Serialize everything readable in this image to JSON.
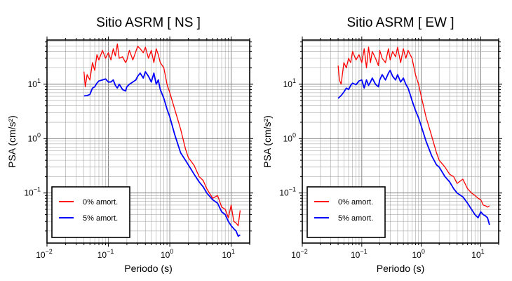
{
  "chart_data": [
    {
      "type": "line",
      "title": "Sitio ASRM [ NS ]",
      "xlabel": "Periodo (s)",
      "ylabel": "PSA (cm/s²)",
      "xscale": "log",
      "yscale": "log",
      "xlim": [
        0.01,
        20
      ],
      "ylim": [
        0.012,
        65
      ],
      "grid": true,
      "legend_position": "bottom-left",
      "x_ticks": [
        {
          "v": 0.01,
          "base": "10",
          "exp": "−2"
        },
        {
          "v": 0.1,
          "base": "10",
          "exp": "−1"
        },
        {
          "v": 1,
          "base": "10",
          "exp": "0"
        },
        {
          "v": 10,
          "base": "10",
          "exp": "1"
        }
      ],
      "y_ticks": [
        {
          "v": 0.1,
          "base": "10",
          "exp": "−1"
        },
        {
          "v": 1,
          "base": "10",
          "exp": "0"
        },
        {
          "v": 10,
          "base": "10",
          "exp": "1"
        }
      ],
      "series": [
        {
          "name": "0% amort.",
          "color": "#ff0000",
          "x": [
            0.04,
            0.042,
            0.045,
            0.05,
            0.055,
            0.06,
            0.065,
            0.07,
            0.08,
            0.09,
            0.1,
            0.11,
            0.12,
            0.13,
            0.14,
            0.15,
            0.17,
            0.19,
            0.2,
            0.22,
            0.25,
            0.28,
            0.3,
            0.33,
            0.37,
            0.4,
            0.45,
            0.5,
            0.55,
            0.6,
            0.65,
            0.7,
            0.8,
            0.9,
            1.0,
            1.2,
            1.5,
            1.8,
            2.0,
            2.5,
            3.0,
            3.5,
            4.0,
            5.0,
            6.0,
            7.0,
            8.0,
            9.0,
            10.0,
            11.0,
            12.0,
            13.0,
            14.0
          ],
          "values": [
            17,
            9,
            15,
            12,
            25,
            18,
            35,
            28,
            42,
            30,
            38,
            28,
            45,
            33,
            55,
            30,
            32,
            25,
            28,
            42,
            28,
            40,
            50,
            45,
            38,
            48,
            30,
            42,
            25,
            45,
            35,
            25,
            20,
            10,
            7,
            3.5,
            1.5,
            0.65,
            0.45,
            0.32,
            0.2,
            0.17,
            0.12,
            0.08,
            0.09,
            0.055,
            0.05,
            0.035,
            0.06,
            0.03,
            0.028,
            0.025,
            0.048
          ]
        },
        {
          "name": "5% amort.",
          "color": "#0000ff",
          "x": [
            0.04,
            0.045,
            0.05,
            0.055,
            0.06,
            0.065,
            0.07,
            0.08,
            0.09,
            0.1,
            0.11,
            0.12,
            0.13,
            0.14,
            0.15,
            0.17,
            0.19,
            0.2,
            0.22,
            0.25,
            0.28,
            0.3,
            0.33,
            0.37,
            0.4,
            0.45,
            0.5,
            0.55,
            0.6,
            0.65,
            0.7,
            0.8,
            0.9,
            1.0,
            1.2,
            1.5,
            1.8,
            2.0,
            2.5,
            3.0,
            3.5,
            4.0,
            5.0,
            6.0,
            7.0,
            8.0,
            9.0,
            10.0,
            11.0,
            12.0,
            13.0,
            14.0
          ],
          "values": [
            6.1,
            6.2,
            6.5,
            8.5,
            9,
            10.5,
            11.5,
            12,
            12.5,
            11,
            11,
            12,
            9.5,
            8.5,
            10,
            8,
            7.5,
            9,
            10,
            11,
            12,
            14,
            16,
            13,
            17,
            14,
            11,
            16,
            10,
            12,
            8,
            5.5,
            3.5,
            2.5,
            1.2,
            0.55,
            0.4,
            0.33,
            0.22,
            0.16,
            0.13,
            0.1,
            0.075,
            0.065,
            0.045,
            0.04,
            0.03,
            0.025,
            0.022,
            0.02,
            0.016,
            0.017
          ]
        }
      ]
    },
    {
      "type": "line",
      "title": "Sitio ASRM [ EW ]",
      "xlabel": "Periodo (s)",
      "ylabel": "PSA (cm/s²)",
      "xscale": "log",
      "yscale": "log",
      "xlim": [
        0.01,
        20
      ],
      "ylim": [
        0.012,
        65
      ],
      "grid": true,
      "legend_position": "bottom-left",
      "x_ticks": [
        {
          "v": 0.01,
          "base": "10",
          "exp": "−2"
        },
        {
          "v": 0.1,
          "base": "10",
          "exp": "−1"
        },
        {
          "v": 1,
          "base": "10",
          "exp": "0"
        },
        {
          "v": 10,
          "base": "10",
          "exp": "1"
        }
      ],
      "y_ticks": [
        {
          "v": 0.1,
          "base": "10",
          "exp": "−1"
        },
        {
          "v": 1,
          "base": "10",
          "exp": "0"
        },
        {
          "v": 10,
          "base": "10",
          "exp": "1"
        }
      ],
      "series": [
        {
          "name": "0% amort.",
          "color": "#ff0000",
          "x": [
            0.04,
            0.042,
            0.045,
            0.05,
            0.055,
            0.06,
            0.065,
            0.07,
            0.08,
            0.09,
            0.1,
            0.11,
            0.12,
            0.13,
            0.14,
            0.15,
            0.17,
            0.19,
            0.2,
            0.22,
            0.25,
            0.28,
            0.3,
            0.33,
            0.37,
            0.4,
            0.45,
            0.5,
            0.55,
            0.6,
            0.65,
            0.7,
            0.8,
            0.9,
            1.0,
            1.2,
            1.5,
            1.8,
            2.0,
            2.5,
            3.0,
            3.5,
            4.0,
            5.0,
            6.0,
            7.0,
            8.0,
            9.0,
            10.0,
            11.0,
            12.0,
            13.0,
            14.0
          ],
          "values": [
            22,
            12,
            10,
            25,
            20,
            30,
            25,
            40,
            28,
            35,
            25,
            45,
            20,
            48,
            25,
            40,
            30,
            22,
            42,
            30,
            25,
            45,
            28,
            40,
            32,
            48,
            25,
            45,
            30,
            42,
            35,
            30,
            15,
            10,
            6,
            2.5,
            1.1,
            0.55,
            0.4,
            0.3,
            0.22,
            0.2,
            0.15,
            0.18,
            0.12,
            0.1,
            0.09,
            0.08,
            0.075,
            0.06,
            0.058,
            0.055,
            0.058
          ]
        },
        {
          "name": "5% amort.",
          "color": "#0000ff",
          "x": [
            0.04,
            0.045,
            0.05,
            0.055,
            0.06,
            0.065,
            0.07,
            0.08,
            0.09,
            0.1,
            0.11,
            0.12,
            0.13,
            0.14,
            0.15,
            0.17,
            0.19,
            0.2,
            0.22,
            0.25,
            0.28,
            0.3,
            0.33,
            0.37,
            0.4,
            0.45,
            0.5,
            0.55,
            0.6,
            0.65,
            0.7,
            0.8,
            0.9,
            1.0,
            1.2,
            1.5,
            1.8,
            2.0,
            2.5,
            3.0,
            3.5,
            4.0,
            5.0,
            6.0,
            7.0,
            8.0,
            9.0,
            10.0,
            11.0,
            12.0,
            13.0,
            14.0
          ],
          "values": [
            5.5,
            6.2,
            7.2,
            8.5,
            8,
            9.5,
            10.5,
            9.8,
            11.5,
            12,
            8.5,
            12,
            9.5,
            11,
            13,
            10,
            9,
            12,
            15,
            12,
            16,
            18,
            14,
            12,
            15,
            11,
            13,
            10,
            8.5,
            6.5,
            5,
            3.3,
            2.4,
            1.7,
            0.9,
            0.48,
            0.33,
            0.3,
            0.2,
            0.16,
            0.12,
            0.1,
            0.085,
            0.065,
            0.05,
            0.04,
            0.035,
            0.045,
            0.04,
            0.038,
            0.035,
            0.026
          ]
        }
      ]
    }
  ]
}
